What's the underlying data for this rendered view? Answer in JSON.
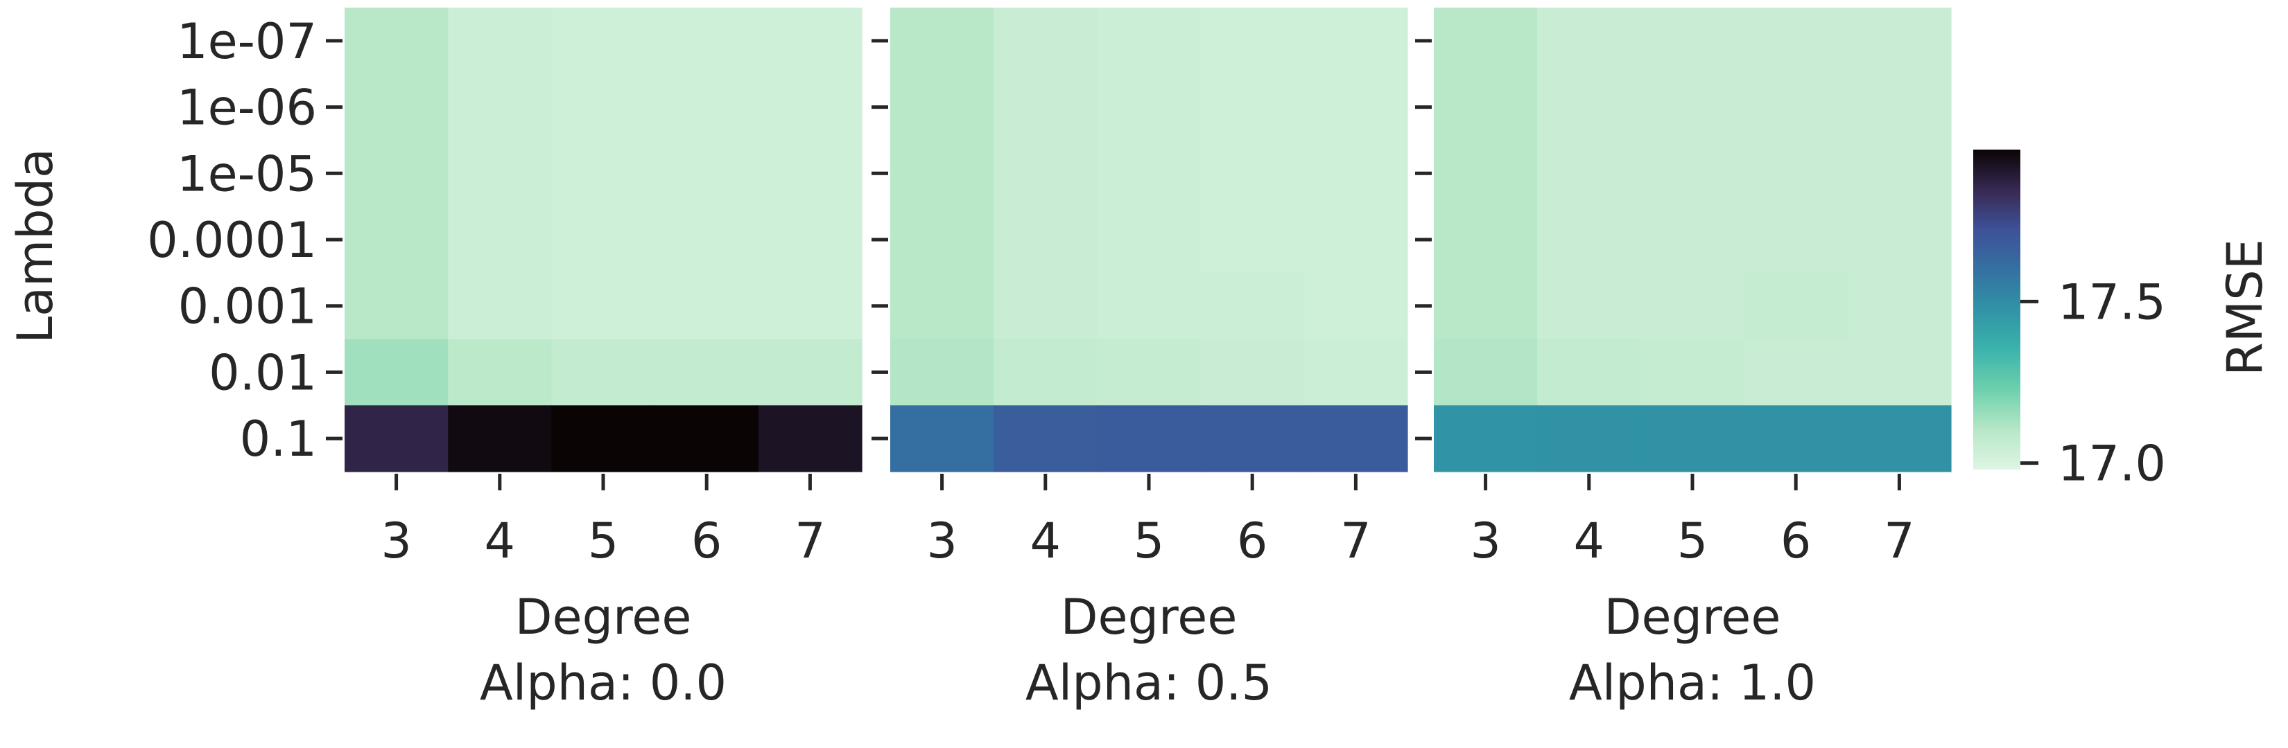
{
  "chart_data": {
    "type": "heatmap",
    "y_label": "Lambda",
    "y_categories": [
      "1e-07",
      "1e-06",
      "1e-05",
      "0.0001",
      "0.001",
      "0.01",
      "0.1"
    ],
    "x_label": "Degree",
    "x_categories": [
      "3",
      "4",
      "5",
      "6",
      "7"
    ],
    "panels": [
      {
        "title": "Alpha: 0.0",
        "values": [
          [
            17.1,
            17.04,
            17.03,
            17.03,
            17.03
          ],
          [
            17.1,
            17.04,
            17.03,
            17.03,
            17.03
          ],
          [
            17.1,
            17.04,
            17.03,
            17.03,
            17.03
          ],
          [
            17.1,
            17.04,
            17.03,
            17.03,
            17.03
          ],
          [
            17.1,
            17.04,
            17.03,
            17.03,
            17.03
          ],
          [
            17.14,
            17.09,
            17.07,
            17.07,
            17.07
          ],
          [
            17.86,
            17.95,
            17.97,
            17.97,
            17.92
          ]
        ]
      },
      {
        "title": "Alpha: 0.5",
        "values": [
          [
            17.1,
            17.05,
            17.04,
            17.03,
            17.03
          ],
          [
            17.1,
            17.05,
            17.04,
            17.03,
            17.03
          ],
          [
            17.1,
            17.05,
            17.04,
            17.03,
            17.03
          ],
          [
            17.1,
            17.05,
            17.04,
            17.03,
            17.03
          ],
          [
            17.1,
            17.05,
            17.04,
            17.04,
            17.03
          ],
          [
            17.11,
            17.07,
            17.06,
            17.05,
            17.04
          ],
          [
            17.61,
            17.67,
            17.68,
            17.68,
            17.68
          ]
        ]
      },
      {
        "title": "Alpha: 1.0",
        "values": [
          [
            17.1,
            17.05,
            17.05,
            17.05,
            17.05
          ],
          [
            17.1,
            17.05,
            17.05,
            17.05,
            17.05
          ],
          [
            17.1,
            17.05,
            17.05,
            17.05,
            17.05
          ],
          [
            17.1,
            17.05,
            17.05,
            17.05,
            17.05
          ],
          [
            17.1,
            17.05,
            17.05,
            17.06,
            17.05
          ],
          [
            17.11,
            17.07,
            17.06,
            17.05,
            17.05
          ],
          [
            17.47,
            17.48,
            17.48,
            17.48,
            17.48
          ]
        ]
      }
    ],
    "colorbar": {
      "label": "RMSE",
      "vmin": 16.98,
      "vmax": 17.97,
      "ticks": [
        17.0,
        17.5
      ],
      "tick_labels": [
        "17.0",
        "17.5"
      ]
    },
    "colormap": [
      [
        0.0,
        "#def5e5"
      ],
      [
        0.12,
        "#b9e8c8"
      ],
      [
        0.25,
        "#6dd0ad"
      ],
      [
        0.38,
        "#3ab2ab"
      ],
      [
        0.5,
        "#3193a6"
      ],
      [
        0.62,
        "#3472a1"
      ],
      [
        0.75,
        "#3e5199"
      ],
      [
        0.87,
        "#382a54"
      ],
      [
        1.0,
        "#0b0405"
      ]
    ]
  }
}
